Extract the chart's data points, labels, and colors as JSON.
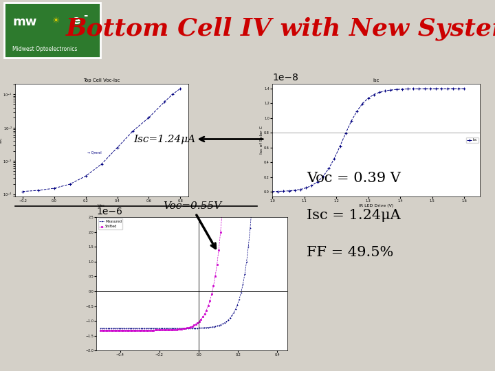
{
  "title": "Bottom Cell IV with New System",
  "bg_color": "#d4d0c8",
  "title_color": "#cc0000",
  "title_fontsize": 26,
  "logo_bg": "#2d7a2d",
  "logo_subtext": "Midwest Optoelectronics",
  "annotation_isc": "Isc=1.24μA",
  "annotation_voc": "Voc=0.55V",
  "stats_voc": "Voc = 0.39 V",
  "stats_isc": "Isc = 1.24μA",
  "stats_ff": "FF = 49.5%",
  "stats_fontsize": 15,
  "plot1_title": "Top Cell Voc-Isc",
  "plot1_xlabel": "Voc",
  "plot1_ylabel": "Isc",
  "plot2_title": "Isc",
  "plot2_xlabel": "IR LED Drive (V)",
  "plot2_ylabel": "Isc of Solar C",
  "plot3_legend_measured": "Measured",
  "plot3_legend_shifted": "Shifted",
  "plot3_measured_color": "#000080",
  "plot3_shifted_color": "#cc00cc",
  "dark_green": "#1a5c1a",
  "light_green": "#4aaa4a"
}
